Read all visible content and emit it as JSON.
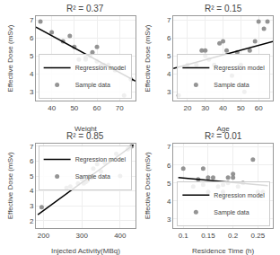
{
  "chart_data": [
    {
      "type": "scatter",
      "title": "R² = 0.37",
      "xlabel": "Weight",
      "ylabel": "Effective Dose (mSv)",
      "series": [
        {
          "name": "Sample data",
          "type": "scatter",
          "color": "#888888",
          "marker": "circle",
          "x": [
            35,
            40,
            45,
            48,
            50,
            52,
            55,
            55,
            57,
            58,
            60,
            60,
            62,
            63,
            65,
            68,
            70,
            72,
            75
          ],
          "values": [
            6.9,
            6.3,
            5.8,
            6.1,
            5.5,
            4.8,
            4.9,
            4.8,
            5.0,
            5.2,
            4.7,
            5.5,
            4.5,
            4.5,
            4.5,
            4.2,
            4.3,
            2.8,
            3.7
          ]
        },
        {
          "name": "Regression model",
          "type": "line",
          "color": "#000000",
          "line_style": "solid",
          "x": [
            33,
            77
          ],
          "values": [
            6.6,
            3.6
          ]
        }
      ],
      "xlim": [
        33,
        77
      ],
      "xticks": [
        40,
        50,
        60,
        70
      ],
      "ylim": [
        2.5,
        7.2
      ],
      "yticks": [
        3,
        4,
        5,
        6,
        7
      ],
      "grid": true,
      "legend": "lower left"
    },
    {
      "type": "scatter",
      "title": "R² = 0.15",
      "xlabel": "Age",
      "ylabel": "Effective Dose (mSv)",
      "series": [
        {
          "name": "Sample data",
          "type": "scatter",
          "color": "#888888",
          "marker": "circle",
          "x": [
            15,
            20,
            25,
            28,
            30,
            30,
            32,
            35,
            38,
            40,
            42,
            45,
            48,
            50,
            52,
            55,
            58,
            60,
            63,
            65
          ],
          "values": [
            2.8,
            4.5,
            4.5,
            5.3,
            5.3,
            5.0,
            4.8,
            4.5,
            5.7,
            5.8,
            5.3,
            3.9,
            5.2,
            4.5,
            3.0,
            5.3,
            5.8,
            6.9,
            6.5,
            6.9
          ]
        },
        {
          "name": "Regression model",
          "type": "line",
          "color": "#000000",
          "line_style": "solid",
          "x": [
            12,
            68
          ],
          "values": [
            4.3,
            5.8
          ]
        }
      ],
      "xlim": [
        12,
        68
      ],
      "xticks": [
        20,
        30,
        40,
        50,
        60
      ],
      "ylim": [
        2.5,
        7.2
      ],
      "yticks": [
        3,
        4,
        5,
        6,
        7
      ],
      "grid": true,
      "legend": "lower right"
    },
    {
      "type": "scatter",
      "title": "R² = 0.85",
      "xlabel": "Injected Activity(MBq)",
      "ylabel": "Effective Dose (mSv)",
      "series": [
        {
          "name": "Sample data",
          "type": "scatter",
          "color": "#888888",
          "marker": "circle",
          "x": [
            195,
            260,
            270,
            290,
            300,
            305,
            310,
            315,
            320,
            325,
            330,
            340,
            350,
            360,
            390,
            400,
            420,
            425,
            430
          ],
          "values": [
            2.9,
            4.2,
            4.3,
            4.5,
            4.8,
            4.5,
            4.6,
            4.7,
            5.0,
            4.9,
            5.5,
            5.8,
            5.3,
            5.9,
            6.5,
            5.0,
            6.8,
            6.9,
            7.0
          ]
        },
        {
          "name": "Regression model",
          "type": "line",
          "color": "#000000",
          "line_style": "solid",
          "x": [
            185,
            435
          ],
          "values": [
            2.4,
            7.1
          ]
        }
      ],
      "xlim": [
        180,
        440
      ],
      "xticks": [
        200,
        300,
        400
      ],
      "ylim": [
        1.5,
        7.2
      ],
      "yticks": [
        2,
        3,
        4,
        5,
        6,
        7
      ],
      "grid": true,
      "legend": "upper left"
    },
    {
      "type": "scatter",
      "title": "R² = 0.01",
      "xlabel": "Residence Time (h)",
      "ylabel": "Effective Dose (mSv)",
      "series": [
        {
          "name": "Sample data",
          "type": "scatter",
          "color": "#888888",
          "marker": "circle",
          "x": [
            0.1,
            0.12,
            0.13,
            0.14,
            0.14,
            0.15,
            0.15,
            0.16,
            0.17,
            0.18,
            0.18,
            0.19,
            0.19,
            0.2,
            0.2,
            0.21,
            0.22,
            0.24,
            0.25,
            0.26
          ],
          "values": [
            5.8,
            4.8,
            5.2,
            5.8,
            4.9,
            5.3,
            4.5,
            5.3,
            4.8,
            4.5,
            4.9,
            5.3,
            5.0,
            5.5,
            5.3,
            4.8,
            5.0,
            6.3,
            4.5,
            4.5
          ]
        },
        {
          "name": "Regression model",
          "type": "line",
          "color": "#000000",
          "line_style": "solid",
          "x": [
            0.09,
            0.27
          ],
          "values": [
            5.3,
            4.85
          ]
        }
      ],
      "xlim": [
        0.08,
        0.28
      ],
      "xticks": [
        0.1,
        0.15,
        0.2,
        0.25
      ],
      "ylim": [
        2.5,
        7.2
      ],
      "yticks": [
        3,
        4,
        5,
        6,
        7
      ],
      "grid": true,
      "legend": "lower right"
    }
  ]
}
